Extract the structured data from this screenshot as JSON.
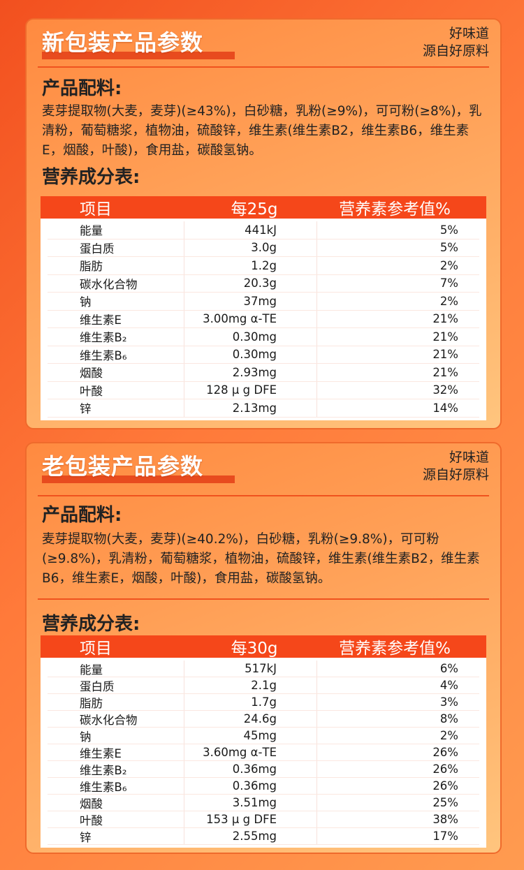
{
  "sections": [
    {
      "title": "新包装产品参数",
      "slogan": [
        "好味道",
        "源自好原料"
      ],
      "ingredients_heading": "产品配料:",
      "ingredients": "麦芽提取物(大麦，麦芽)(≥43%)，白砂糖，乳粉(≥9%)，可可粉(≥8%)，乳清粉，葡萄糖浆，植物油，硫酸锌，维生素(维生素B2，维生素B6，维生素E，烟酸，叶酸)，食用盐，碳酸氢钠。",
      "nutrition_heading": "营养成分表:",
      "headers": [
        "项目",
        "每25g",
        "营养素参考值%"
      ],
      "rows": [
        [
          "能量",
          "441kJ",
          "5%"
        ],
        [
          "蛋白质",
          "3.0g",
          "5%"
        ],
        [
          "脂肪",
          "1.2g",
          "2%"
        ],
        [
          "碳水化合物",
          "20.3g",
          "7%"
        ],
        [
          "钠",
          "37mg",
          "2%"
        ],
        [
          "维生素E",
          "3.00mg α-TE",
          "21%"
        ],
        [
          "维生素B₂",
          "0.30mg",
          "21%"
        ],
        [
          "维生素B₆",
          "0.30mg",
          "21%"
        ],
        [
          "烟酸",
          "2.93mg",
          "21%"
        ],
        [
          "叶酸",
          "128 μ g DFE",
          "32%"
        ],
        [
          "锌",
          "2.13mg",
          "14%"
        ]
      ]
    },
    {
      "title": "老包装产品参数",
      "slogan": [
        "好味道",
        "源自好原料"
      ],
      "ingredients_heading": "产品配料:",
      "ingredients": "麦芽提取物(大麦，麦芽)(≥40.2%)，白砂糖，乳粉(≥9.8%)，可可粉(≥9.8%)，乳清粉，葡萄糖浆，植物油，硫酸锌，维生素(维生素B2，维生素B6，维生素E，烟酸，叶酸)，食用盐，碳酸氢钠。",
      "nutrition_heading": "营养成分表:",
      "headers": [
        "项目",
        "每30g",
        "营养素参考值%"
      ],
      "rows": [
        [
          "能量",
          "517kJ",
          "6%"
        ],
        [
          "蛋白质",
          "2.1g",
          "4%"
        ],
        [
          "脂肪",
          "1.7g",
          "3%"
        ],
        [
          "碳水化合物",
          "24.6g",
          "8%"
        ],
        [
          "钠",
          "45mg",
          "2%"
        ],
        [
          "维生素E",
          "3.60mg α-TE",
          "26%"
        ],
        [
          "维生素B₂",
          "0.36mg",
          "26%"
        ],
        [
          "维生素B₆",
          "0.36mg",
          "26%"
        ],
        [
          "烟酸",
          "3.51mg",
          "25%"
        ],
        [
          "叶酸",
          "153 μ g DFE",
          "38%"
        ],
        [
          "锌",
          "2.55mg",
          "17%"
        ]
      ]
    }
  ],
  "colors": {
    "accent": "#f5471a",
    "card_border": "#ef6a2c"
  }
}
